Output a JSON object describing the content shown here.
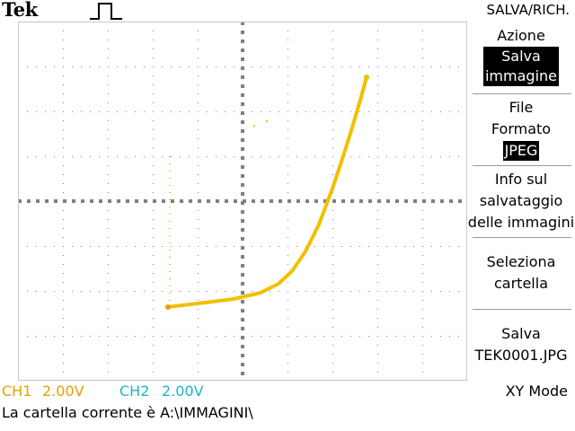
{
  "header": {
    "brand": "Tek",
    "menu_title": "SALVA/RICH."
  },
  "menu": {
    "action_label": "Azione",
    "action_value_line1": "Salva",
    "action_value_line2": "immagine",
    "format_label_line1": "File",
    "format_label_line2": "Formato",
    "format_value": "JPEG",
    "info_line1": "Info sul",
    "info_line2": "salvataggio",
    "info_line3": "delle immagini",
    "select_line1": "Seleziona",
    "select_line2": "cartella",
    "save_line1": "Salva",
    "save_line2": "TEK0001.JPG"
  },
  "status": {
    "ch1_label": "CH1",
    "ch1_scale": "2.00V",
    "ch2_label": "CH2",
    "ch2_scale": "2.00V",
    "mode": "XY Mode"
  },
  "message": "La cartella corrente è A:\\IMMAGINI\\",
  "colors": {
    "trace": "#f0c000",
    "ch1": "#e8a000",
    "ch2": "#1cb8c8",
    "grid": "#808080"
  }
}
